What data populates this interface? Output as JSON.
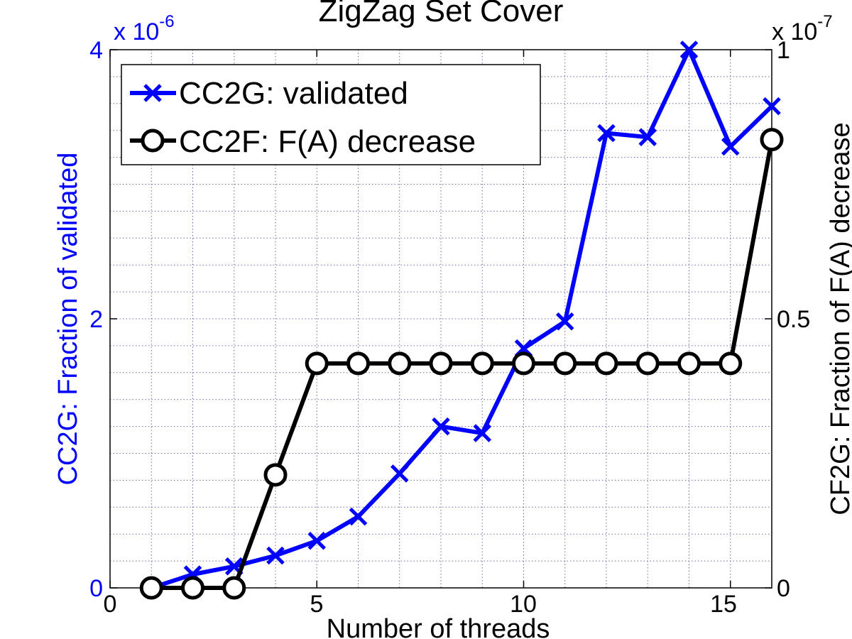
{
  "chart_data": {
    "type": "line",
    "title": "ZigZag Set Cover",
    "xlabel": "Number of threads",
    "xlim": [
      0,
      16
    ],
    "x_ticks": [
      "0",
      "5",
      "10",
      "15"
    ],
    "left_axis": {
      "label": "CC2G: Fraction of validated",
      "exponent_base": "x 10",
      "exponent_power": "-6",
      "ylim": [
        0,
        4
      ],
      "ticks": [
        "0",
        "2",
        "4"
      ],
      "color": "#0000ff"
    },
    "right_axis": {
      "label": "CF2G: Fraction of F(A) decrease",
      "exponent_base": "x 10",
      "exponent_power": "-7",
      "ylim": [
        0,
        1
      ],
      "ticks": [
        "0",
        "0.5",
        "1"
      ],
      "color": "#000000"
    },
    "grid": true,
    "legend_position": "top-left",
    "series": [
      {
        "name": "CC2G: validated",
        "axis": "left",
        "marker": "x",
        "color": "#0000ff",
        "x": [
          1,
          2,
          3,
          4,
          5,
          6,
          7,
          8,
          9,
          10,
          11,
          12,
          13,
          14,
          15,
          16
        ],
        "y": [
          0,
          0.1,
          0.16,
          0.24,
          0.35,
          0.53,
          0.85,
          1.2,
          1.15,
          1.78,
          1.98,
          3.38,
          3.35,
          4.0,
          3.28,
          3.58
        ]
      },
      {
        "name": "CC2F: F(A) decrease",
        "axis": "right",
        "marker": "o",
        "color": "#000000",
        "x": [
          1,
          2,
          3,
          4,
          5,
          6,
          7,
          8,
          9,
          10,
          11,
          12,
          13,
          14,
          15,
          16
        ],
        "y": [
          0,
          0,
          0,
          0.21,
          0.417,
          0.417,
          0.417,
          0.417,
          0.417,
          0.417,
          0.417,
          0.417,
          0.417,
          0.417,
          0.417,
          0.833
        ]
      }
    ]
  }
}
